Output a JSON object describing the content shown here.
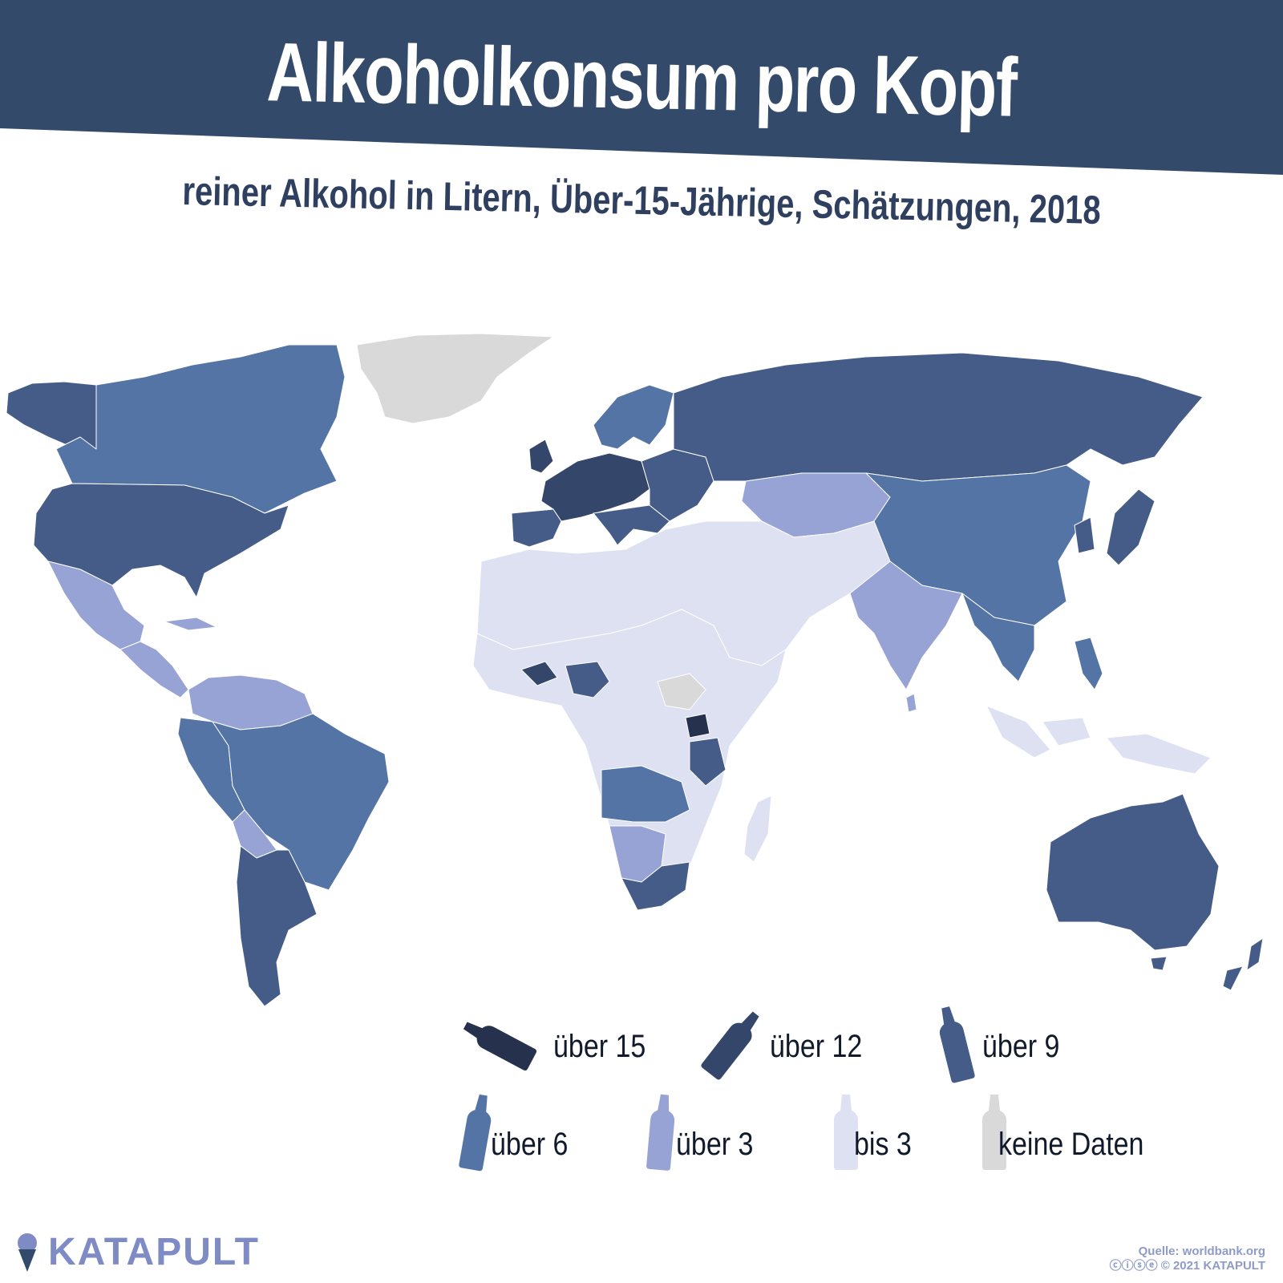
{
  "header": {
    "title": "Alkoholkonsum pro Kopf",
    "subtitle": "reiner Alkohol in Litern, Über-15-Jährige, Schätzungen, 2018"
  },
  "colors": {
    "banner": "#334a6b",
    "ocean": "#ffffff",
    "border": "#ffffff"
  },
  "legend": [
    {
      "label": "über 15",
      "color": "#26324d",
      "icon": "bottle-tilted-icon"
    },
    {
      "label": "über 12",
      "color": "#34466a",
      "icon": "bottle-tilted-icon"
    },
    {
      "label": "über 9",
      "color": "#455c88",
      "icon": "bottle-tilted-icon"
    },
    {
      "label": "über 6",
      "color": "#5474a6",
      "icon": "bottle-icon"
    },
    {
      "label": "über 3",
      "color": "#97a3d4",
      "icon": "bottle-icon"
    },
    {
      "label": "bis 3",
      "color": "#dee1f1",
      "icon": "bottle-icon"
    },
    {
      "label": "keine Daten",
      "color": "#d9d9d9",
      "icon": "bottle-icon"
    }
  ],
  "regions": [
    {
      "name": "Kanada",
      "class": "über 6"
    },
    {
      "name": "USA",
      "class": "über 9"
    },
    {
      "name": "Alaska",
      "class": "über 9"
    },
    {
      "name": "Grönland",
      "class": "keine Daten"
    },
    {
      "name": "Mexiko",
      "class": "über 3"
    },
    {
      "name": "Mittelamerika",
      "class": "über 3"
    },
    {
      "name": "Kolumbien/Venezuela",
      "class": "über 3"
    },
    {
      "name": "Brasilien",
      "class": "über 6"
    },
    {
      "name": "Peru",
      "class": "über 6"
    },
    {
      "name": "Bolivien",
      "class": "über 3"
    },
    {
      "name": "Argentinien/Chile",
      "class": "über 9"
    },
    {
      "name": "Westeuropa",
      "class": "über 12"
    },
    {
      "name": "Iberien",
      "class": "über 9"
    },
    {
      "name": "Skandinavien",
      "class": "über 6"
    },
    {
      "name": "Osteuropa",
      "class": "über 9"
    },
    {
      "name": "Russland",
      "class": "über 9"
    },
    {
      "name": "Kasachstan",
      "class": "über 3"
    },
    {
      "name": "China",
      "class": "über 6"
    },
    {
      "name": "Indien",
      "class": "über 3"
    },
    {
      "name": "Nordafrika/Nahost",
      "class": "bis 3"
    },
    {
      "name": "Subsahara-Afrika",
      "class": "bis 3"
    },
    {
      "name": "Südsudan",
      "class": "keine Daten"
    },
    {
      "name": "Nigeria",
      "class": "über 9"
    },
    {
      "name": "Burkina Faso",
      "class": "über 12"
    },
    {
      "name": "Uganda",
      "class": "über 15"
    },
    {
      "name": "Tansania",
      "class": "über 9"
    },
    {
      "name": "Angola/Sambia",
      "class": "über 6"
    },
    {
      "name": "Namibia/Botswana",
      "class": "über 3"
    },
    {
      "name": "Südafrika",
      "class": "über 9"
    },
    {
      "name": "Madagaskar",
      "class": "bis 3"
    },
    {
      "name": "Südostasien",
      "class": "über 6"
    },
    {
      "name": "Indonesien",
      "class": "bis 3"
    },
    {
      "name": "Japan/Korea",
      "class": "über 9"
    },
    {
      "name": "Australien",
      "class": "über 9"
    },
    {
      "name": "Neuseeland",
      "class": "über 9"
    }
  ],
  "brand": "KATAPULT",
  "source_line": "Quelle: worldbank.org",
  "copyright_line": "2021 KATAPULT"
}
